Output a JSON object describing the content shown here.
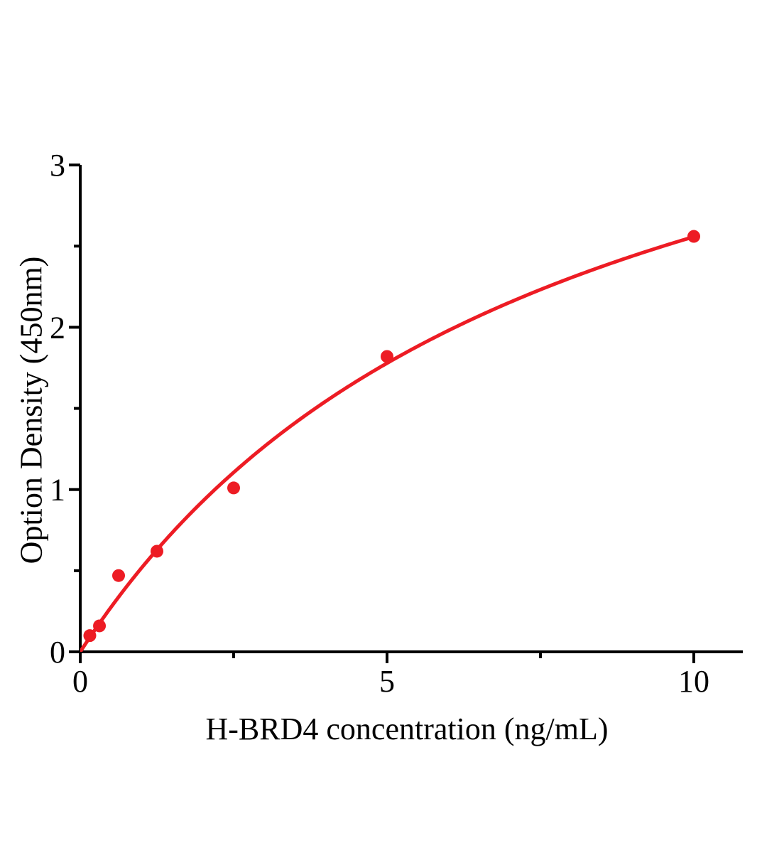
{
  "figure": {
    "background_color": "#ffffff",
    "axis_color": "#000000",
    "accent_color": "#ed1c24"
  },
  "chart_data": {
    "type": "scatter",
    "title": "",
    "xlabel": "H-BRD4 concentration (ng/mL)",
    "ylabel": "Option Density (450nm)",
    "xlim": [
      0,
      10.8
    ],
    "ylim": [
      0,
      3
    ],
    "grid": false,
    "legend": "none",
    "xticks": {
      "major": [
        0,
        5,
        10
      ],
      "minor": [
        2.5,
        7.5
      ],
      "labels": [
        "0",
        "5",
        "10"
      ]
    },
    "yticks": {
      "major": [
        0,
        1,
        2,
        3
      ],
      "minor": [
        0.5,
        1.5,
        2.5
      ],
      "labels": [
        "0",
        "1",
        "2",
        "3"
      ]
    },
    "series": [
      {
        "name": "H-BRD4 standard",
        "marker": "circle",
        "marker_color": "#ed1c24",
        "points": [
          {
            "x": 0.156,
            "y": 0.1
          },
          {
            "x": 0.313,
            "y": 0.16
          },
          {
            "x": 0.625,
            "y": 0.47
          },
          {
            "x": 1.25,
            "y": 0.62
          },
          {
            "x": 2.5,
            "y": 1.01
          },
          {
            "x": 5,
            "y": 1.82
          },
          {
            "x": 10,
            "y": 2.56
          }
        ]
      }
    ],
    "fit_curve": {
      "name": "fitted standard curve",
      "model": "saturation (y = a*x / (b + x))",
      "a": 4.55,
      "b": 7.79,
      "x_range": [
        0,
        10
      ],
      "color": "#ed1c24"
    }
  }
}
